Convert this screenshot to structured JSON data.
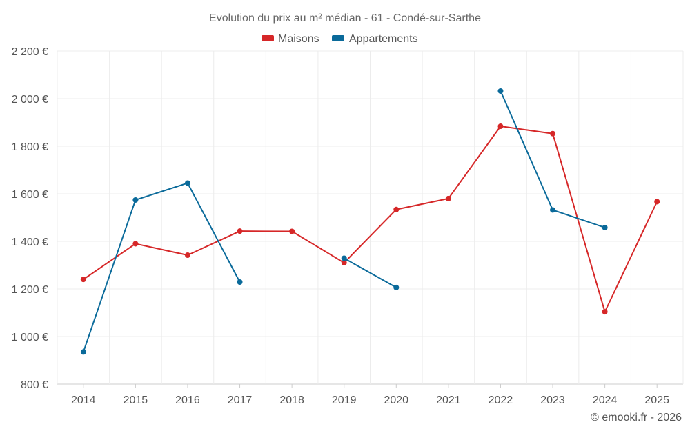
{
  "chart_data": {
    "type": "line",
    "title": "Evolution du prix au m² médian - 61 - Condé-sur-Sarthe",
    "categories": [
      "2014",
      "2015",
      "2016",
      "2017",
      "2018",
      "2019",
      "2020",
      "2021",
      "2022",
      "2023",
      "2024",
      "2025"
    ],
    "series": [
      {
        "name": "Maisons",
        "color": "#d62728",
        "values": [
          1240,
          1390,
          1342,
          1443,
          1442,
          1310,
          1534,
          1580,
          1884,
          1853,
          1104,
          1567
        ]
      },
      {
        "name": "Appartements",
        "color": "#0a6a9a",
        "values": [
          935,
          1574,
          1645,
          1229,
          null,
          1329,
          1206,
          null,
          2032,
          1532,
          1458,
          null
        ]
      }
    ],
    "ylim": [
      800,
      2200
    ],
    "yticks": [
      800,
      1000,
      1200,
      1400,
      1600,
      1800,
      2000,
      2200
    ],
    "ytick_labels": [
      "800 €",
      "1 000 €",
      "1 200 €",
      "1 400 €",
      "1 600 €",
      "1 800 €",
      "2 000 €",
      "2 200 €"
    ],
    "legend_position": "top-center",
    "grid": true,
    "xlabel": "",
    "ylabel": ""
  },
  "credit": "© emooki.fr - 2026"
}
